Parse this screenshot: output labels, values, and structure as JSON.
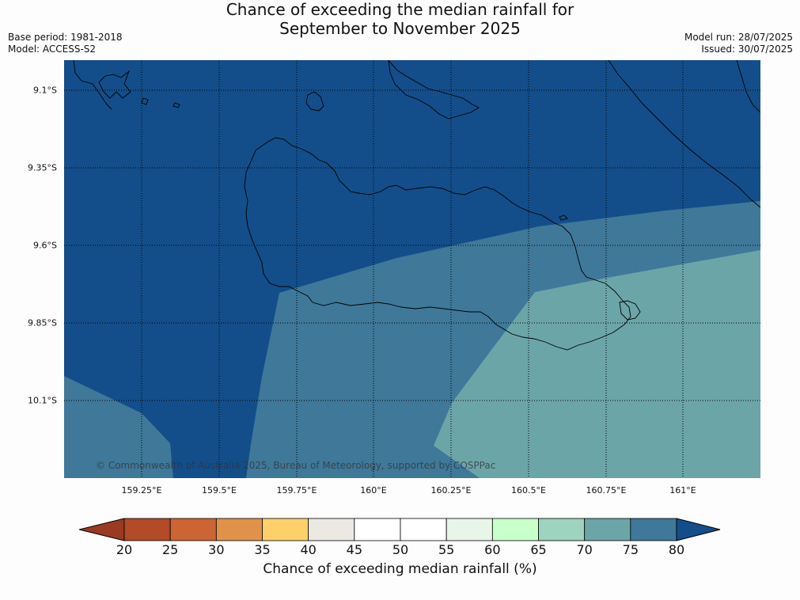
{
  "header": {
    "title_line1": "Chance of exceeding the median rainfall for",
    "title_line2": "September to November 2025",
    "base_period": "Base period: 1981-2018",
    "model": "Model: ACCESS-S2",
    "model_run": "Model run: 28/07/2025",
    "issued": "Issued: 30/07/2025"
  },
  "map": {
    "lat_labels": [
      "9.1°S",
      "9.35°S",
      "9.6°S",
      "9.85°S",
      "10.1°S"
    ],
    "lon_labels": [
      "159.25°E",
      "159.5°E",
      "159.75°E",
      "160°E",
      "160.25°E",
      "160.5°E",
      "160.75°E",
      "161°E"
    ],
    "copyright": "© Commonwealth of Australia 2025, Bureau of Meteorology, supported by COSPPac",
    "zone_colors": {
      "above_80": "#134e8a",
      "75_80": "#3f7899",
      "70_75": "#6ca5a8"
    }
  },
  "colorbar": {
    "ticks": [
      "20",
      "25",
      "30",
      "35",
      "40",
      "45",
      "50",
      "55",
      "60",
      "65",
      "70",
      "75",
      "80"
    ],
    "colors": [
      "#b34a28",
      "#cc6433",
      "#e0924a",
      "#fdd06a",
      "#ece9e4",
      "#ffffff",
      "#ffffff",
      "#e8f5e9",
      "#c9ffca",
      "#9dd3bf",
      "#6ca5a8",
      "#3f7899"
    ],
    "under_color": "#9a3a22",
    "over_color": "#134e8a",
    "label": "Chance of exceeding median rainfall (%)"
  }
}
